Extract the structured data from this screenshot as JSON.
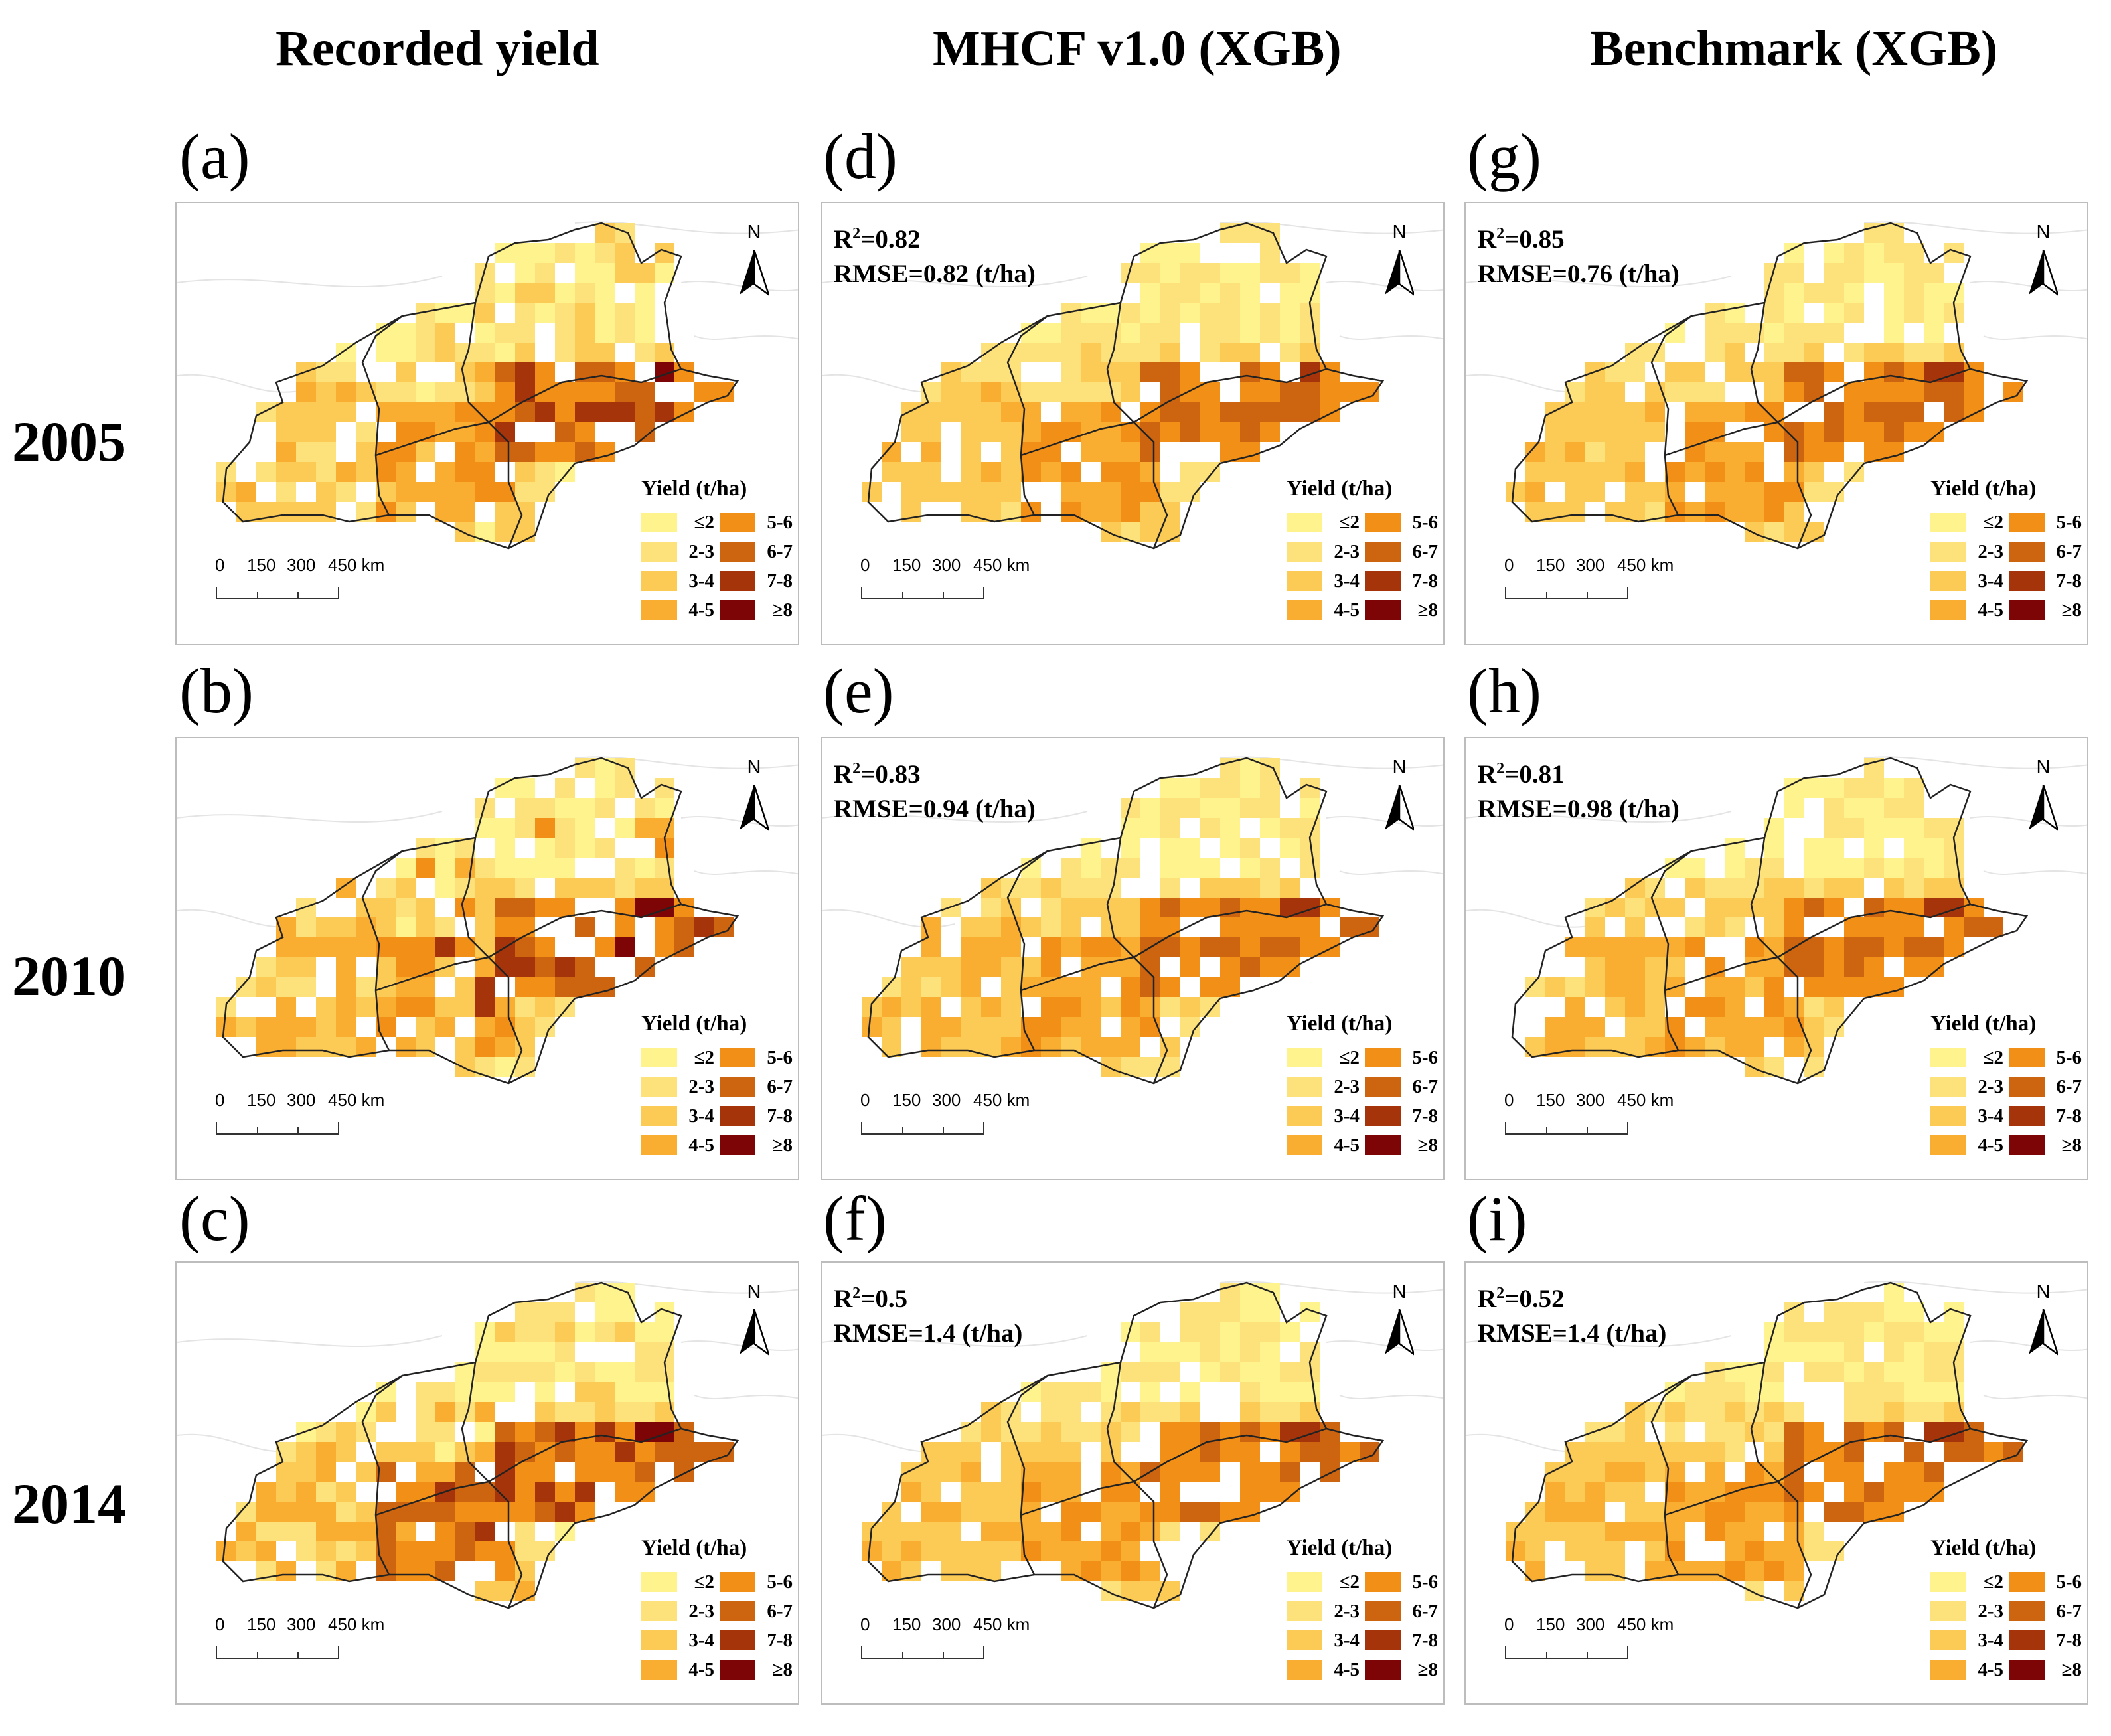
{
  "columns": [
    {
      "title": "Recorded yield"
    },
    {
      "title": "MHCF v1.0 (XGB)"
    },
    {
      "title": "Benchmark (XGB)"
    }
  ],
  "rows": [
    {
      "year": "2005"
    },
    {
      "year": "2010"
    },
    {
      "year": "2014"
    }
  ],
  "panels": [
    {
      "label": "(a)",
      "r2_prefix": "",
      "r2_value": "",
      "rmse": ""
    },
    {
      "label": "(b)",
      "r2_prefix": "",
      "r2_value": "",
      "rmse": ""
    },
    {
      "label": "(c)",
      "r2_prefix": "",
      "r2_value": "",
      "rmse": ""
    },
    {
      "label": "(d)",
      "r2_prefix": "R",
      "r2_value": "=0.82",
      "rmse": "RMSE=0.82 (t/ha)"
    },
    {
      "label": "(e)",
      "r2_prefix": "R",
      "r2_value": "=0.83",
      "rmse": "RMSE=0.94 (t/ha)"
    },
    {
      "label": "(f)",
      "r2_prefix": "R",
      "r2_value": "=0.5",
      "rmse": "RMSE=1.4 (t/ha)"
    },
    {
      "label": "(g)",
      "r2_prefix": "R",
      "r2_value": "=0.85",
      "rmse": "RMSE=0.76 (t/ha)"
    },
    {
      "label": "(h)",
      "r2_prefix": "R",
      "r2_value": "=0.81",
      "rmse": "RMSE=0.98 (t/ha)"
    },
    {
      "label": "(i)",
      "r2_prefix": "R",
      "r2_value": "=0.52",
      "rmse": "RMSE=1.4 (t/ha)"
    }
  ],
  "r2_superscript": "2",
  "north_label": "N",
  "legend": {
    "title": "Yield (t/ha)",
    "classes": [
      {
        "label": "≤2",
        "color": "#fff38e"
      },
      {
        "label": "2-3",
        "color": "#fde27c"
      },
      {
        "label": "3-4",
        "color": "#fccb55"
      },
      {
        "label": "4-5",
        "color": "#f9ae32"
      },
      {
        "label": "5-6",
        "color": "#f28f17"
      },
      {
        "label": "6-7",
        "color": "#cd6410"
      },
      {
        "label": "7-8",
        "color": "#a5340b"
      },
      {
        "label": "≥8",
        "color": "#7d0505"
      }
    ]
  },
  "scale_bar": {
    "ticks": [
      "0",
      "150",
      "300",
      "450 km"
    ]
  }
}
